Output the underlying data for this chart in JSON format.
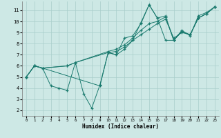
{
  "xlabel": "Humidex (Indice chaleur)",
  "bg_color": "#cde8e5",
  "line_color": "#1a7a6e",
  "grid_color": "#a8ceca",
  "xlim": [
    -0.5,
    23.5
  ],
  "ylim": [
    1.5,
    11.8
  ],
  "xticks": [
    0,
    1,
    2,
    3,
    4,
    5,
    6,
    7,
    8,
    9,
    10,
    11,
    12,
    13,
    14,
    15,
    16,
    17,
    18,
    19,
    20,
    21,
    22,
    23
  ],
  "yticks": [
    2,
    3,
    4,
    5,
    6,
    7,
    8,
    9,
    10,
    11
  ],
  "lines": [
    {
      "x": [
        0,
        1,
        2,
        3,
        4,
        5,
        6,
        7,
        8,
        9,
        10,
        11,
        12,
        13,
        14,
        15,
        16,
        17,
        18,
        19,
        20,
        21,
        22,
        23
      ],
      "y": [
        5.0,
        6.0,
        5.8,
        4.2,
        4.0,
        3.8,
        6.3,
        3.5,
        2.2,
        4.3,
        7.2,
        7.0,
        8.5,
        8.7,
        9.8,
        11.5,
        10.3,
        10.5,
        8.3,
        9.2,
        8.7,
        10.5,
        10.8,
        11.3
      ]
    },
    {
      "x": [
        0,
        1,
        2,
        5,
        6,
        10,
        11,
        12,
        13,
        14,
        15,
        16,
        17,
        18,
        19,
        20,
        21,
        22,
        23
      ],
      "y": [
        5.0,
        6.0,
        5.8,
        6.0,
        6.3,
        7.2,
        7.3,
        7.7,
        8.3,
        8.8,
        9.3,
        9.8,
        10.2,
        8.5,
        9.0,
        8.8,
        10.3,
        10.7,
        11.3
      ]
    },
    {
      "x": [
        0,
        1,
        2,
        5,
        6,
        10,
        11,
        12,
        13,
        14,
        15,
        16,
        17,
        18,
        19,
        20,
        21,
        22,
        23
      ],
      "y": [
        5.0,
        6.0,
        5.8,
        6.0,
        6.3,
        7.3,
        7.5,
        7.9,
        8.5,
        9.2,
        9.8,
        10.0,
        10.4,
        8.3,
        9.1,
        8.8,
        10.3,
        10.7,
        11.3
      ]
    },
    {
      "x": [
        0,
        1,
        2,
        9,
        10,
        11,
        12,
        13,
        14,
        15,
        16,
        17,
        18,
        19,
        20,
        21,
        22,
        23
      ],
      "y": [
        5.0,
        6.0,
        5.8,
        4.2,
        7.2,
        7.0,
        7.5,
        8.3,
        9.9,
        11.5,
        10.3,
        8.3,
        8.3,
        9.1,
        8.8,
        10.3,
        10.7,
        11.3
      ]
    }
  ]
}
